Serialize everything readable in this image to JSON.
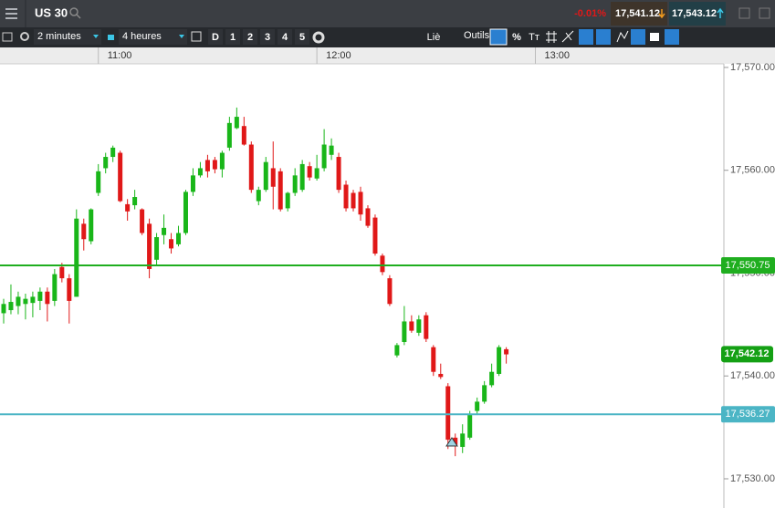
{
  "header": {
    "symbol": "US 30",
    "change": "-0.01%",
    "sell": "17,541.12",
    "buy": "17,543.12"
  },
  "toolbar": {
    "interval": "2 minutes",
    "range": "4 heures",
    "periods": [
      "D",
      "1",
      "2",
      "3",
      "4",
      "5"
    ],
    "link": "Liè",
    "tools": "Outils",
    "percent": "%",
    "text_tool": "Tт"
  },
  "chart_data": {
    "type": "candlestick",
    "x": [
      "10:34",
      "10:36",
      "10:38",
      "10:40",
      "10:42",
      "10:44",
      "10:46",
      "10:48",
      "10:50",
      "10:52",
      "10:54",
      "10:56",
      "10:58",
      "11:00",
      "11:02",
      "11:04",
      "11:06",
      "11:08",
      "11:10",
      "11:12",
      "11:14",
      "11:16",
      "11:18",
      "11:20",
      "11:22",
      "11:24",
      "11:26",
      "11:28",
      "11:30",
      "11:32",
      "11:34",
      "11:36",
      "11:38",
      "11:40",
      "11:42",
      "11:44",
      "11:46",
      "11:48",
      "11:50",
      "11:52",
      "11:54",
      "11:56",
      "11:58",
      "12:00",
      "12:02",
      "12:04",
      "12:06",
      "12:08",
      "12:10",
      "12:12",
      "12:14",
      "12:16",
      "12:18",
      "12:20",
      "12:22",
      "12:24",
      "12:26",
      "12:28",
      "12:30",
      "12:32",
      "12:34",
      "12:36",
      "12:38",
      "12:40",
      "12:42",
      "12:44",
      "12:46",
      "12:48",
      "12:50",
      "12:52"
    ],
    "open": [
      17546.1,
      17546.4,
      17546.8,
      17547.0,
      17547.1,
      17547.3,
      17548.2,
      17547.3,
      17550.6,
      17549.5,
      17547.7,
      17554.8,
      17553.1,
      17557.8,
      17560.2,
      17561.3,
      17561.7,
      17556.7,
      17556.6,
      17556.2,
      17554.8,
      17551.3,
      17553.7,
      17553.3,
      17552.8,
      17553.9,
      17557.9,
      17559.5,
      17561.0,
      17561.0,
      17560.1,
      17562.2,
      17564.1,
      17564.3,
      17562.5,
      17557.0,
      17558.1,
      17560.2,
      17559.9,
      17556.3,
      17557.8,
      17558.1,
      17560.4,
      17559.2,
      17560.2,
      17561.5,
      17561.3,
      17558.6,
      17557.8,
      17557.9,
      17556.3,
      17555.4,
      17551.7,
      17549.5,
      17542.0,
      17543.3,
      17545.3,
      17544.2,
      17545.9,
      17542.8,
      17540.2,
      17539.0,
      17534.0,
      17533.1,
      17534.0,
      17536.6,
      17537.5,
      17539.1,
      17540.2,
      17542.6
    ],
    "high": [
      17547.5,
      17548.9,
      17548.2,
      17548.0,
      17548.2,
      17548.6,
      17548.6,
      17550.4,
      17551.0,
      17549.9,
      17556.2,
      17555.3,
      17556.3,
      17560.6,
      17561.7,
      17562.4,
      17561.9,
      17557.2,
      17558.1,
      17556.3,
      17555.3,
      17553.9,
      17555.7,
      17553.9,
      17554.6,
      17558.1,
      17560.2,
      17560.8,
      17561.5,
      17561.3,
      17561.9,
      17565.2,
      17566.1,
      17565.2,
      17562.8,
      17558.4,
      17561.3,
      17562.8,
      17560.2,
      17557.9,
      17560.2,
      17561.0,
      17560.8,
      17561.5,
      17564.0,
      17563.1,
      17561.7,
      17559.0,
      17558.1,
      17558.4,
      17556.6,
      17555.7,
      17551.9,
      17549.8,
      17543.2,
      17546.8,
      17545.9,
      17545.9,
      17546.2,
      17543.0,
      17541.2,
      17539.3,
      17534.4,
      17535.3,
      17536.6,
      17537.9,
      17539.5,
      17541.2,
      17543.0,
      17542.8
    ],
    "low": [
      17545.1,
      17546.0,
      17546.0,
      17545.5,
      17545.7,
      17546.4,
      17545.3,
      17546.8,
      17549.1,
      17545.1,
      17547.7,
      17552.2,
      17552.8,
      17557.5,
      17559.7,
      17560.8,
      17556.9,
      17555.1,
      17556.2,
      17553.7,
      17549.5,
      17550.8,
      17552.8,
      17551.9,
      17552.6,
      17553.7,
      17557.5,
      17559.3,
      17559.3,
      17559.7,
      17559.3,
      17561.9,
      17564.0,
      17562.4,
      17557.8,
      17556.6,
      17557.9,
      17556.2,
      17556.0,
      17556.0,
      17557.5,
      17557.9,
      17559.0,
      17559.0,
      17559.9,
      17561.0,
      17557.8,
      17556.0,
      17556.0,
      17555.1,
      17554.4,
      17551.7,
      17549.8,
      17546.8,
      17541.8,
      17543.0,
      17544.2,
      17543.9,
      17543.3,
      17540.0,
      17539.7,
      17532.9,
      17532.2,
      17532.5,
      17533.8,
      17536.2,
      17537.3,
      17538.9,
      17540.0,
      17541.2
    ],
    "close": [
      17547.0,
      17547.2,
      17547.7,
      17547.5,
      17547.7,
      17548.2,
      17547.0,
      17549.9,
      17549.5,
      17547.3,
      17555.3,
      17553.3,
      17556.2,
      17559.9,
      17561.3,
      17562.2,
      17557.0,
      17556.0,
      17557.4,
      17553.9,
      17550.4,
      17553.5,
      17554.4,
      17552.4,
      17553.9,
      17557.9,
      17559.5,
      17560.2,
      17559.9,
      17560.1,
      17561.7,
      17564.6,
      17565.2,
      17562.5,
      17558.1,
      17558.1,
      17560.8,
      17558.4,
      17556.2,
      17557.8,
      17559.5,
      17560.6,
      17559.3,
      17560.2,
      17562.5,
      17562.4,
      17558.1,
      17556.3,
      17556.3,
      17555.7,
      17554.6,
      17551.9,
      17550.1,
      17547.0,
      17543.0,
      17545.3,
      17544.4,
      17545.5,
      17543.6,
      17540.4,
      17539.9,
      17533.8,
      17533.3,
      17534.4,
      17536.2,
      17537.5,
      17539.1,
      17540.4,
      17542.8,
      17542.1
    ],
    "up_color": "#19b619",
    "down_color": "#e01818",
    "xlim": [
      "10:33",
      "13:51"
    ],
    "xticks": [
      "11:00",
      "12:00",
      "13:00"
    ],
    "ylim": [
      17527.16,
      17570.35
    ],
    "yticks": [
      {
        "value": 17570,
        "label": "17,570.00"
      },
      {
        "value": 17560,
        "label": "17,560.00"
      },
      {
        "value": 17550,
        "label": "17,550.00"
      },
      {
        "value": 17540,
        "label": "17,540.00"
      },
      {
        "value": 17530,
        "label": "17,530.00"
      }
    ],
    "lines": [
      {
        "value": 17550.75,
        "label": "17,550.75",
        "color": "#1fae1f"
      },
      {
        "value": 17536.27,
        "label": "17,536.27",
        "color": "#4bb5c5"
      }
    ],
    "last_price": {
      "value": 17542.12,
      "label": "17,542.12",
      "color": "#14a014"
    }
  }
}
